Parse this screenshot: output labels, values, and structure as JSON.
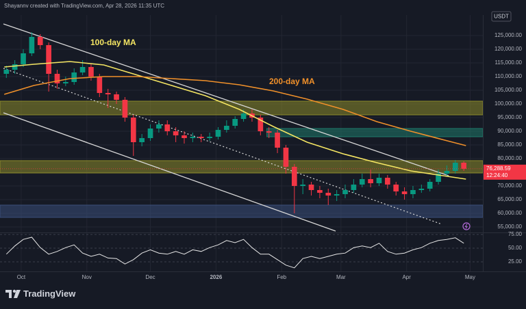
{
  "header": {
    "attribution": "Shayannv created with TradingView.com, Apr 28, 2026 11:35 UTC",
    "currency": "USDT"
  },
  "footer": {
    "brand": "TradingView"
  },
  "chart_data": [
    {
      "type": "candlestick",
      "x": [
        -7,
        -3,
        1,
        5,
        9,
        13,
        17,
        21,
        25,
        29,
        33,
        37,
        41,
        45,
        49,
        53,
        57,
        61,
        65,
        69,
        73,
        77,
        81,
        85,
        89,
        93,
        97,
        101,
        105,
        109,
        113,
        117,
        121,
        125,
        129,
        133,
        137,
        141,
        145,
        149,
        153,
        157,
        161,
        165,
        169,
        173,
        177,
        181,
        185,
        189,
        193,
        197,
        201,
        205,
        209
      ],
      "open": [
        111000,
        112500,
        114500,
        118500,
        124500,
        121500,
        111000,
        107500,
        108000,
        111500,
        113500,
        110000,
        104000,
        103500,
        101500,
        95000,
        86000,
        87500,
        91000,
        92500,
        90000,
        88500,
        87500,
        88000,
        87500,
        88000,
        90500,
        92000,
        94500,
        96500,
        95000,
        90000,
        89500,
        84000,
        77000,
        70000,
        70500,
        68500,
        67500,
        66500,
        67000,
        68500,
        70500,
        72500,
        71000,
        73000,
        70500,
        68000,
        67000,
        68500,
        69000,
        71500,
        74500,
        75500,
        78500
      ],
      "high": [
        114000,
        116000,
        120000,
        126200,
        125500,
        122500,
        112500,
        110000,
        113000,
        116000,
        114500,
        111000,
        105500,
        104500,
        102500,
        96000,
        89000,
        92500,
        94000,
        94000,
        91500,
        90000,
        89500,
        89000,
        89500,
        91500,
        94000,
        95500,
        98000,
        98000,
        96000,
        91500,
        90500,
        85000,
        78000,
        72500,
        71500,
        70000,
        69000,
        68500,
        70500,
        72500,
        74500,
        76000,
        74500,
        74000,
        71500,
        69500,
        70000,
        70500,
        72500,
        76000,
        77500,
        79500,
        79000
      ],
      "low": [
        109500,
        111000,
        113500,
        117500,
        120000,
        104500,
        105500,
        106500,
        107000,
        110500,
        108500,
        102500,
        98500,
        100000,
        93500,
        81000,
        84500,
        86500,
        89500,
        88500,
        86000,
        85500,
        86000,
        86000,
        86500,
        87000,
        89500,
        91000,
        93500,
        93500,
        88500,
        87500,
        82000,
        74500,
        60000,
        67000,
        66500,
        65500,
        63000,
        64500,
        65500,
        67500,
        69500,
        69500,
        70000,
        69000,
        66500,
        65000,
        65500,
        67500,
        68000,
        70500,
        73500,
        74500,
        75500
      ],
      "close": [
        112500,
        114500,
        118500,
        124500,
        121500,
        111000,
        107500,
        108000,
        111500,
        113500,
        110000,
        104000,
        103500,
        101500,
        95000,
        86000,
        87500,
        91000,
        92500,
        90000,
        88500,
        87500,
        88000,
        87500,
        88000,
        90500,
        92000,
        94500,
        96500,
        95000,
        90000,
        89500,
        84000,
        77000,
        70000,
        70500,
        68500,
        67500,
        66500,
        67000,
        68500,
        70500,
        72500,
        71000,
        73000,
        70500,
        68000,
        67000,
        68500,
        69000,
        71500,
        74500,
        75500,
        78500,
        76288.59
      ],
      "up_color": "#089981",
      "down_color": "#f23645",
      "series": [
        {
          "name": "100-day MA",
          "color": "#f5e663",
          "x": [
            -8,
            6,
            23,
            39,
            55,
            71,
            87,
            103,
            119,
            135,
            152,
            168,
            184,
            197,
            210
          ],
          "values": [
            113500,
            114500,
            115500,
            114250,
            110500,
            106750,
            103000,
            98000,
            91750,
            86000,
            81750,
            78500,
            75500,
            74000,
            72500
          ]
        },
        {
          "name": "200-day MA",
          "color": "#f0902a",
          "x": [
            -8,
            6,
            23,
            39,
            55,
            71,
            87,
            103,
            119,
            135,
            152,
            168,
            184,
            200,
            210
          ],
          "values": [
            103500,
            106750,
            109250,
            110000,
            110000,
            109250,
            108500,
            107000,
            104750,
            101750,
            98000,
            93500,
            90000,
            86750,
            84750
          ]
        }
      ],
      "zones": [
        {
          "low": 96000,
          "high": 101000,
          "color": "#8c8a2a"
        },
        {
          "low": 74750,
          "high": 79250,
          "color": "#8c8a2a"
        },
        {
          "low": 88000,
          "high": 91000,
          "color": "#1f7a6a",
          "x_start": 116
        },
        {
          "low": 58500,
          "high": 63000,
          "color": "#3a4f7a"
        }
      ],
      "last_price": {
        "value": 76288.59,
        "label": "76,288.59"
      },
      "countdown": "12:24:40",
      "xlim": [
        -10,
        218
      ],
      "xticks": [
        {
          "value": 0,
          "label": "Oct"
        },
        {
          "value": 31,
          "label": "Nov"
        },
        {
          "value": 61,
          "label": "Dec"
        },
        {
          "value": 92,
          "label": "2026"
        },
        {
          "value": 123,
          "label": "Feb"
        },
        {
          "value": 151,
          "label": "Mar"
        },
        {
          "value": 182,
          "label": "Apr"
        },
        {
          "value": 212,
          "label": "May"
        }
      ],
      "ylim": [
        53000,
        132500
      ],
      "yticks": [
        {
          "value": 55000,
          "label": "55,000.00"
        },
        {
          "value": 60000,
          "label": "60,000.00"
        },
        {
          "value": 65000,
          "label": "65,000.00"
        },
        {
          "value": 70000,
          "label": "70,000.00"
        },
        {
          "value": 75000,
          "label": "75,000.00"
        },
        {
          "value": 80000,
          "label": "80,000.00"
        },
        {
          "value": 85000,
          "label": "85,000.00"
        },
        {
          "value": 90000,
          "label": "90,000.00"
        },
        {
          "value": 95000,
          "label": "95,000.00"
        },
        {
          "value": 100000,
          "label": "100,000.00"
        },
        {
          "value": 105000,
          "label": "105,000.00"
        },
        {
          "value": 110000,
          "label": "110,000.00"
        },
        {
          "value": 115000,
          "label": "115,000.00"
        },
        {
          "value": 120000,
          "label": "120,000.00"
        },
        {
          "value": 125000,
          "label": "125,000.00"
        }
      ],
      "grid": true
    },
    {
      "type": "line",
      "color": "#e8e8e8",
      "x": [
        -7,
        -3,
        1,
        5,
        9,
        13,
        17,
        21,
        25,
        29,
        33,
        37,
        41,
        45,
        49,
        53,
        57,
        61,
        65,
        69,
        73,
        77,
        81,
        85,
        89,
        93,
        97,
        101,
        105,
        109,
        113,
        117,
        121,
        125,
        129,
        133,
        137,
        141,
        145,
        149,
        153,
        157,
        161,
        165,
        169,
        173,
        177,
        181,
        185,
        189,
        193,
        197,
        201,
        205,
        209
      ],
      "values": [
        39,
        54,
        66,
        70,
        51,
        39,
        44,
        51,
        56,
        41,
        35,
        39,
        32,
        31,
        21,
        29,
        41,
        47,
        41,
        39,
        44,
        39,
        47,
        44,
        51,
        56,
        64,
        60,
        66,
        51,
        39,
        39,
        29,
        19,
        14,
        31,
        35,
        31,
        35,
        39,
        41,
        51,
        54,
        51,
        59,
        44,
        39,
        41,
        47,
        51,
        59,
        64,
        66,
        69,
        59
      ],
      "xlim": [
        -10,
        218
      ],
      "ylim": [
        7.5,
        77.5
      ],
      "yticks": [
        {
          "value": 25,
          "label": "25.00"
        },
        {
          "value": 50,
          "label": "50.00"
        },
        {
          "value": 75,
          "label": "75.00"
        }
      ]
    }
  ]
}
